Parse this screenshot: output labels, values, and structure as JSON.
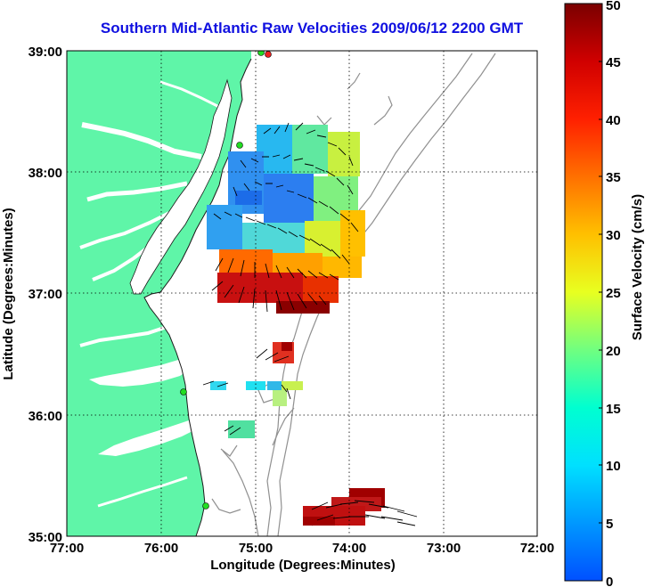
{
  "title": "Southern Mid-Atlantic Raw Velocities 2009/06/12 2200 GMT",
  "xlabel": "Longitude (Degrees:Minutes)",
  "ylabel": "Latitude (Degrees:Minutes)",
  "colorbar": {
    "label": "Surface Velocity (cm/s)",
    "min": 0,
    "max": 50,
    "ticks": [
      "0",
      "5",
      "10",
      "15",
      "20",
      "25",
      "30",
      "35",
      "40",
      "45",
      "50"
    ]
  },
  "chart_data": {
    "type": "heatmap",
    "x_ticks": [
      "77:00",
      "76:00",
      "75:00",
      "74:00",
      "73:00",
      "72:00"
    ],
    "y_ticks": [
      "39:00",
      "38:00",
      "37:00",
      "36:00",
      "35:00"
    ],
    "xlim": [
      -77,
      -72
    ],
    "ylim": [
      35,
      39
    ],
    "grid": true,
    "colors": {
      "land": "#5ff5a8",
      "water": "#ffffff",
      "bathymetry": "#909090",
      "stations": "#22dd22",
      "station_active": "#ee2020"
    },
    "velocity_regions": [
      {
        "name": "main-field",
        "lon_range": [
          -75.55,
          -74.05
        ],
        "lat_range": [
          36.85,
          38.1
        ]
      },
      {
        "name": "small-patch-red",
        "lon_range": [
          -74.85,
          -74.65
        ],
        "lat_range": [
          36.45,
          36.6
        ]
      },
      {
        "name": "small-patch-mid",
        "lon_range": [
          -75.1,
          -74.5
        ],
        "lat_range": [
          36.15,
          36.25
        ]
      },
      {
        "name": "small-patch-south",
        "lon_range": [
          -75.3,
          -75.0
        ],
        "lat_range": [
          35.9,
          36.0
        ]
      },
      {
        "name": "southern-red-field",
        "lon_range": [
          -74.5,
          -73.6
        ],
        "lat_range": [
          35.1,
          35.35
        ]
      }
    ]
  }
}
